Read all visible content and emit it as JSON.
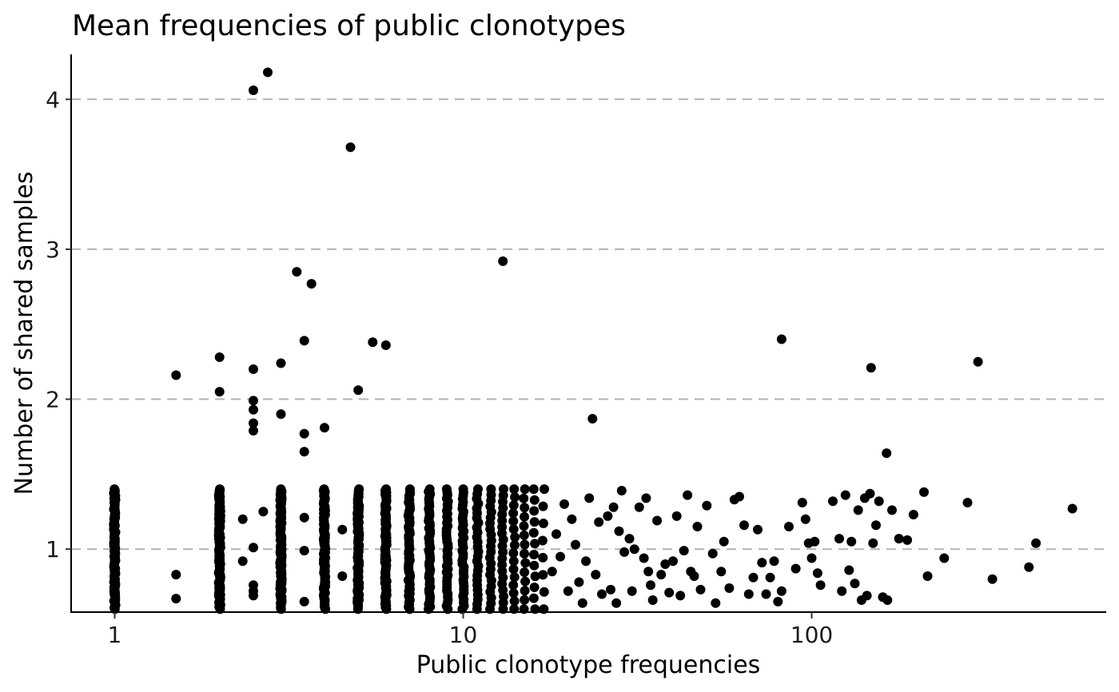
{
  "chart_data": {
    "type": "scatter",
    "title": "Mean frequencies of public clonotypes",
    "xlabel": "Public clonotype frequencies",
    "ylabel": "Number of shared samples",
    "x_scale": "log10",
    "xlim": [
      0.75,
      700
    ],
    "ylim": [
      0.58,
      4.3
    ],
    "x_ticks": [
      1,
      10,
      100
    ],
    "x_tick_labels": [
      "1",
      "10",
      "100"
    ],
    "y_ticks": [
      1,
      2,
      3,
      4
    ],
    "y_tick_labels": [
      "1",
      "2",
      "3",
      "4"
    ],
    "grid": {
      "major_y": true,
      "major_x": false,
      "style": "dashed"
    },
    "legend": "none",
    "point_color": "#000000",
    "dense_columns": [
      {
        "x": 1,
        "y_range": [
          0.6,
          1.4
        ],
        "count": 90
      },
      {
        "x": 2,
        "y_range": [
          0.6,
          1.4
        ],
        "count": 110
      },
      {
        "x": 3,
        "y_range": [
          0.6,
          1.4
        ],
        "count": 100
      },
      {
        "x": 4,
        "y_range": [
          0.6,
          1.4
        ],
        "count": 90
      },
      {
        "x": 5,
        "y_range": [
          0.6,
          1.4
        ],
        "count": 80
      },
      {
        "x": 6,
        "y_range": [
          0.6,
          1.4
        ],
        "count": 70
      },
      {
        "x": 7,
        "y_range": [
          0.6,
          1.4
        ],
        "count": 55
      },
      {
        "x": 8,
        "y_range": [
          0.6,
          1.4
        ],
        "count": 50
      },
      {
        "x": 9,
        "y_range": [
          0.6,
          1.4
        ],
        "count": 40
      },
      {
        "x": 10,
        "y_range": [
          0.6,
          1.4
        ],
        "count": 38
      },
      {
        "x": 11,
        "y_range": [
          0.6,
          1.4
        ],
        "count": 26
      },
      {
        "x": 12,
        "y_range": [
          0.6,
          1.4
        ],
        "count": 22
      },
      {
        "x": 13,
        "y_range": [
          0.6,
          1.4
        ],
        "count": 20
      },
      {
        "x": 14,
        "y_range": [
          0.6,
          1.4
        ],
        "count": 16
      },
      {
        "x": 15,
        "y_range": [
          0.6,
          1.4
        ],
        "count": 14
      },
      {
        "x": 16,
        "y_range": [
          0.6,
          1.4
        ],
        "count": 12
      },
      {
        "x": 17,
        "y_range": [
          0.6,
          1.4
        ],
        "count": 8
      }
    ],
    "points": [
      {
        "x": 1.5,
        "y": 2.16
      },
      {
        "x": 1.5,
        "y": 0.83
      },
      {
        "x": 1.5,
        "y": 0.67
      },
      {
        "x": 2.0,
        "y": 2.28
      },
      {
        "x": 2.0,
        "y": 2.05
      },
      {
        "x": 2.5,
        "y": 4.06
      },
      {
        "x": 2.5,
        "y": 2.2
      },
      {
        "x": 2.5,
        "y": 1.99
      },
      {
        "x": 2.5,
        "y": 1.93
      },
      {
        "x": 2.5,
        "y": 1.84
      },
      {
        "x": 2.5,
        "y": 1.79
      },
      {
        "x": 2.5,
        "y": 1.01
      },
      {
        "x": 2.5,
        "y": 0.76
      },
      {
        "x": 2.5,
        "y": 0.72
      },
      {
        "x": 2.5,
        "y": 0.69
      },
      {
        "x": 2.33,
        "y": 1.2
      },
      {
        "x": 2.33,
        "y": 0.92
      },
      {
        "x": 2.67,
        "y": 1.25
      },
      {
        "x": 2.75,
        "y": 4.18
      },
      {
        "x": 3.0,
        "y": 2.24
      },
      {
        "x": 3.0,
        "y": 1.9
      },
      {
        "x": 3.33,
        "y": 2.85
      },
      {
        "x": 3.5,
        "y": 2.39
      },
      {
        "x": 3.5,
        "y": 1.77
      },
      {
        "x": 3.5,
        "y": 1.65
      },
      {
        "x": 3.5,
        "y": 1.21
      },
      {
        "x": 3.5,
        "y": 0.99
      },
      {
        "x": 3.5,
        "y": 0.65
      },
      {
        "x": 3.67,
        "y": 2.77
      },
      {
        "x": 4.0,
        "y": 1.81
      },
      {
        "x": 4.5,
        "y": 1.13
      },
      {
        "x": 4.5,
        "y": 0.82
      },
      {
        "x": 4.75,
        "y": 3.68
      },
      {
        "x": 5.0,
        "y": 2.06
      },
      {
        "x": 5.5,
        "y": 2.38
      },
      {
        "x": 6.0,
        "y": 2.36
      },
      {
        "x": 13.0,
        "y": 2.92
      },
      {
        "x": 23.5,
        "y": 1.87
      },
      {
        "x": 82,
        "y": 2.4
      },
      {
        "x": 148,
        "y": 2.21
      },
      {
        "x": 164,
        "y": 1.64
      },
      {
        "x": 300,
        "y": 2.25
      },
      {
        "x": 18.0,
        "y": 0.85
      },
      {
        "x": 18.5,
        "y": 1.1
      },
      {
        "x": 19,
        "y": 0.95
      },
      {
        "x": 19.5,
        "y": 1.3
      },
      {
        "x": 20,
        "y": 0.72
      },
      {
        "x": 20.5,
        "y": 1.2
      },
      {
        "x": 21,
        "y": 1.03
      },
      {
        "x": 21.5,
        "y": 0.78
      },
      {
        "x": 22,
        "y": 0.64
      },
      {
        "x": 22.5,
        "y": 0.92
      },
      {
        "x": 23,
        "y": 1.34
      },
      {
        "x": 24,
        "y": 0.83
      },
      {
        "x": 24.5,
        "y": 1.18
      },
      {
        "x": 25,
        "y": 0.7
      },
      {
        "x": 26,
        "y": 1.22
      },
      {
        "x": 26.5,
        "y": 0.73
      },
      {
        "x": 27,
        "y": 1.28
      },
      {
        "x": 27.5,
        "y": 0.64
      },
      {
        "x": 28,
        "y": 1.12
      },
      {
        "x": 28.5,
        "y": 1.39
      },
      {
        "x": 29,
        "y": 0.98
      },
      {
        "x": 30,
        "y": 1.07
      },
      {
        "x": 30.5,
        "y": 0.72
      },
      {
        "x": 31,
        "y": 1.0
      },
      {
        "x": 32,
        "y": 1.28
      },
      {
        "x": 33,
        "y": 0.94
      },
      {
        "x": 33.5,
        "y": 1.34
      },
      {
        "x": 34,
        "y": 0.85
      },
      {
        "x": 34.5,
        "y": 0.76
      },
      {
        "x": 35,
        "y": 0.66
      },
      {
        "x": 36,
        "y": 1.19
      },
      {
        "x": 37,
        "y": 0.83
      },
      {
        "x": 38,
        "y": 0.9
      },
      {
        "x": 39,
        "y": 0.71
      },
      {
        "x": 40,
        "y": 0.92
      },
      {
        "x": 41,
        "y": 1.22
      },
      {
        "x": 42,
        "y": 0.69
      },
      {
        "x": 43,
        "y": 0.99
      },
      {
        "x": 44,
        "y": 1.36
      },
      {
        "x": 45,
        "y": 0.85
      },
      {
        "x": 46,
        "y": 0.82
      },
      {
        "x": 47,
        "y": 1.15
      },
      {
        "x": 48,
        "y": 0.73
      },
      {
        "x": 50,
        "y": 1.29
      },
      {
        "x": 52,
        "y": 0.97
      },
      {
        "x": 53,
        "y": 0.64
      },
      {
        "x": 55,
        "y": 0.85
      },
      {
        "x": 56,
        "y": 1.05
      },
      {
        "x": 58,
        "y": 0.74
      },
      {
        "x": 60,
        "y": 1.33
      },
      {
        "x": 62,
        "y": 1.35
      },
      {
        "x": 64,
        "y": 1.16
      },
      {
        "x": 66,
        "y": 0.7
      },
      {
        "x": 68,
        "y": 0.81
      },
      {
        "x": 70,
        "y": 1.13
      },
      {
        "x": 72,
        "y": 0.91
      },
      {
        "x": 74,
        "y": 0.7
      },
      {
        "x": 76,
        "y": 0.81
      },
      {
        "x": 78,
        "y": 0.92
      },
      {
        "x": 80,
        "y": 0.65
      },
      {
        "x": 82,
        "y": 0.72
      },
      {
        "x": 86,
        "y": 1.15
      },
      {
        "x": 90,
        "y": 0.87
      },
      {
        "x": 94,
        "y": 1.31
      },
      {
        "x": 96,
        "y": 1.2
      },
      {
        "x": 98,
        "y": 1.04
      },
      {
        "x": 100,
        "y": 0.94
      },
      {
        "x": 102,
        "y": 1.05
      },
      {
        "x": 104,
        "y": 0.84
      },
      {
        "x": 106,
        "y": 0.76
      },
      {
        "x": 115,
        "y": 1.32
      },
      {
        "x": 120,
        "y": 1.07
      },
      {
        "x": 122,
        "y": 0.72
      },
      {
        "x": 125,
        "y": 1.36
      },
      {
        "x": 128,
        "y": 0.86
      },
      {
        "x": 130,
        "y": 1.05
      },
      {
        "x": 133,
        "y": 0.77
      },
      {
        "x": 136,
        "y": 1.26
      },
      {
        "x": 139,
        "y": 0.66
      },
      {
        "x": 142,
        "y": 1.34
      },
      {
        "x": 144,
        "y": 0.69
      },
      {
        "x": 147,
        "y": 1.37
      },
      {
        "x": 150,
        "y": 1.04
      },
      {
        "x": 153,
        "y": 1.16
      },
      {
        "x": 156,
        "y": 1.32
      },
      {
        "x": 160,
        "y": 0.68
      },
      {
        "x": 165,
        "y": 0.66
      },
      {
        "x": 170,
        "y": 1.26
      },
      {
        "x": 178,
        "y": 1.07
      },
      {
        "x": 188,
        "y": 1.06
      },
      {
        "x": 196,
        "y": 1.23
      },
      {
        "x": 210,
        "y": 1.38
      },
      {
        "x": 215,
        "y": 0.82
      },
      {
        "x": 240,
        "y": 0.94
      },
      {
        "x": 280,
        "y": 1.31
      },
      {
        "x": 330,
        "y": 0.8
      },
      {
        "x": 420,
        "y": 0.88
      },
      {
        "x": 440,
        "y": 1.04
      },
      {
        "x": 560,
        "y": 1.27
      }
    ]
  }
}
